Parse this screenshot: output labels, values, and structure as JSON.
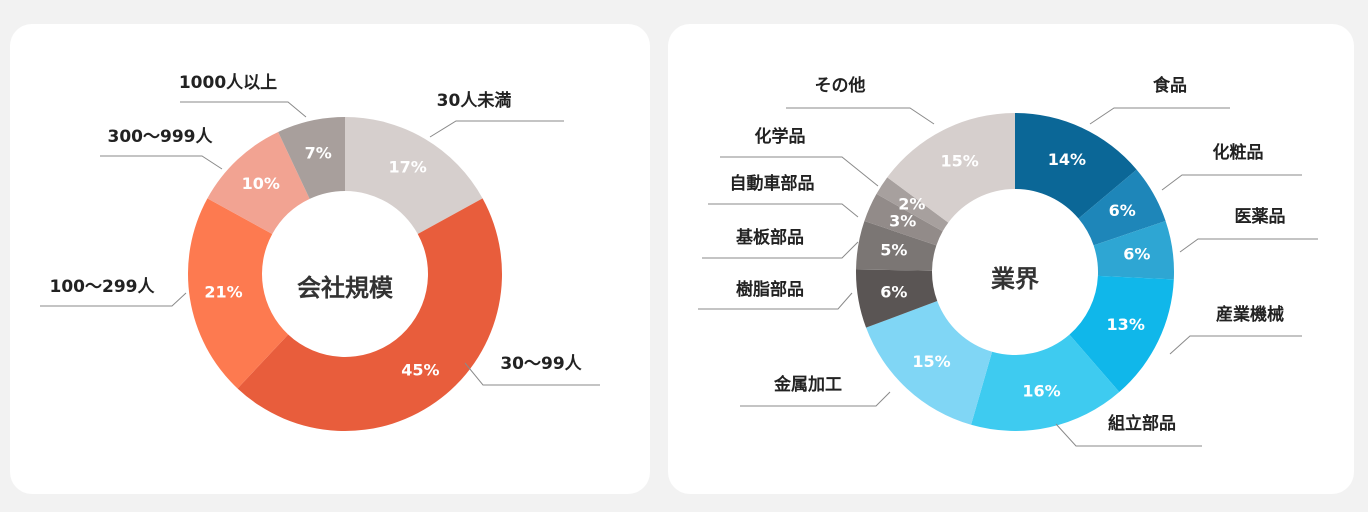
{
  "chart_data": [
    {
      "type": "pie",
      "title": "会社規模",
      "slices": [
        {
          "label": "30人未満",
          "value": 17,
          "display": "17%",
          "color": "#d6cfcd"
        },
        {
          "label": "30〜99人",
          "value": 45,
          "display": "45%",
          "color": "#e85d3c"
        },
        {
          "label": "100〜299人",
          "value": 21,
          "display": "21%",
          "color": "#fd7a50"
        },
        {
          "label": "300〜999人",
          "value": 10,
          "display": "10%",
          "color": "#f2a392"
        },
        {
          "label": "1000人以上",
          "value": 7,
          "display": "7%",
          "color": "#a89f9c"
        }
      ]
    },
    {
      "type": "pie",
      "title": "業界",
      "slices": [
        {
          "label": "食品",
          "value": 14,
          "display": "14%",
          "color": "#0b6797"
        },
        {
          "label": "化粧品",
          "value": 6,
          "display": "6%",
          "color": "#1e86b9"
        },
        {
          "label": "医薬品",
          "value": 6,
          "display": "6%",
          "color": "#2ea6d3"
        },
        {
          "label": "産業機械",
          "value": 13,
          "display": "13%",
          "color": "#10b7ea"
        },
        {
          "label": "組立部品",
          "value": 16,
          "display": "16%",
          "color": "#3ecbf0"
        },
        {
          "label": "金属加工",
          "value": 15,
          "display": "15%",
          "color": "#80d6f5"
        },
        {
          "label": "樹脂部品",
          "value": 6,
          "display": "6%",
          "color": "#5a5554"
        },
        {
          "label": "基板部品",
          "value": 5,
          "display": "5%",
          "color": "#7b7674"
        },
        {
          "label": "自動車部品",
          "value": 3,
          "display": "3%",
          "color": "#928b89"
        },
        {
          "label": "化学品",
          "value": 2,
          "display": "2%",
          "color": "#a7a09e"
        },
        {
          "label": "その他",
          "value": 15,
          "display": "15%",
          "color": "#d6cfcd"
        }
      ]
    }
  ]
}
